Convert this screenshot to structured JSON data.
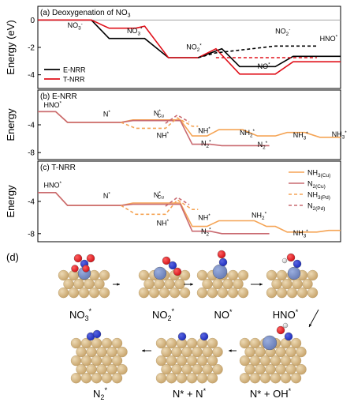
{
  "colors": {
    "black": "#000000",
    "red": "#e0101a",
    "orange": "#f5a455",
    "pink": "#c96a70",
    "blue_label": "#5b9bd5",
    "cu": "#c9a66e",
    "cu_light": "#ecd9b4",
    "n": "#1f2fbf",
    "o": "#d4141a",
    "h": "#eeeeee",
    "site": "#6b7fb8"
  },
  "chart_data": [
    {
      "type": "line",
      "panel": "a",
      "title": "(a) Deoxygenation of NO3",
      "ylabel": "Energy (eV)",
      "ylim": [
        -5,
        1
      ],
      "yticks": [
        0,
        -2,
        -4
      ],
      "step_labels": [
        {
          "text": "NO3",
          "sup": "-",
          "x": 1,
          "y": -0.55
        },
        {
          "text": "NO3",
          "sup": "*",
          "x": 3,
          "y": -0.95
        },
        {
          "text": "NO2",
          "sup": "*",
          "x": 5,
          "y": -2.15
        },
        {
          "text": "NO2",
          "sup": "-",
          "x": 8,
          "y": -1.0,
          "color": "#5b9bd5"
        },
        {
          "text": "NO",
          "sup": "*",
          "x": 7.4,
          "y": -3.55
        },
        {
          "text": "HNO",
          "sup": "*",
          "x": 9.5,
          "y": -1.55
        }
      ],
      "series": [
        {
          "name": "E-NRR",
          "color": "#000000",
          "style": "solid",
          "points": [
            [
              0,
              0
            ],
            [
              1.8,
              0
            ],
            [
              2.4,
              -1.35
            ],
            [
              3.6,
              -1.35
            ],
            [
              4.4,
              -2.75
            ],
            [
              5.4,
              -2.75
            ],
            [
              6.2,
              -2.1
            ],
            [
              6.8,
              -3.4
            ],
            [
              8.0,
              -3.4
            ],
            [
              8.6,
              -2.65
            ],
            [
              10.2,
              -2.65
            ]
          ]
        },
        {
          "name": "T-NRR",
          "color": "#e0101a",
          "style": "solid",
          "points": [
            [
              0,
              0
            ],
            [
              1.8,
              0
            ],
            [
              2.4,
              -0.6
            ],
            [
              3.3,
              -0.6
            ],
            [
              3.6,
              -0.45
            ],
            [
              4.4,
              -2.75
            ],
            [
              5.4,
              -2.75
            ],
            [
              6.0,
              -2.1
            ],
            [
              6.8,
              -3.95
            ],
            [
              8.0,
              -3.95
            ],
            [
              8.6,
              -3.05
            ],
            [
              10.2,
              -3.05
            ]
          ]
        },
        {
          "name": "",
          "color": "#000000",
          "style": "dashed",
          "points": [
            [
              5.4,
              -2.75
            ],
            [
              6.0,
              -2.4
            ],
            [
              8.0,
              -1.9
            ],
            [
              9.4,
              -1.9
            ]
          ]
        },
        {
          "name": "",
          "color": "#e0101a",
          "style": "dashed",
          "points": [
            [
              6.0,
              -2.75
            ],
            [
              9.4,
              -2.75
            ]
          ]
        }
      ],
      "legend": [
        "E-NRR",
        "T-NRR"
      ],
      "legend_placement": "bottom-left"
    },
    {
      "type": "line",
      "panel": "b",
      "title": "(b) E-NRR",
      "ylabel": "Energy",
      "ylim": [
        -9,
        1
      ],
      "yticks": [
        -4,
        -8
      ],
      "step_labels": [
        {
          "text": "HNO",
          "sup": "*",
          "x": 0.2,
          "y": -1.5
        },
        {
          "text": "N",
          "sup": "*",
          "x": 2.2,
          "y": -2.8
        },
        {
          "text": "N",
          "sup": "*",
          "sub": "Cu",
          "x": 3.9,
          "y": -2.7
        },
        {
          "text": "NH",
          "sup": "*",
          "x": 4.0,
          "y": -5.9,
          "color": "#f5a455"
        },
        {
          "text": "NH",
          "sup": "*",
          "x": 5.4,
          "y": -5.2,
          "color": "#f5a455"
        },
        {
          "text": "NH2",
          "sup": "*",
          "x": 6.8,
          "y": -5.5,
          "color": "#f5a455"
        },
        {
          "text": "N2",
          "sup": "*",
          "x": 5.5,
          "y": -7.0,
          "color": "#c96a70"
        },
        {
          "text": "N2",
          "sup": "*",
          "x": 7.4,
          "y": -7.2,
          "color": "#c96a70"
        },
        {
          "text": "NH3",
          "sup": "*",
          "x": 8.6,
          "y": -5.8,
          "color": "#f5a455"
        },
        {
          "text": "NH3",
          "sup": "*",
          "x": 9.9,
          "y": -5.7,
          "color": "#f5a455"
        }
      ],
      "series": [
        {
          "name": "NH3(Cu)",
          "color": "#f5a455",
          "style": "solid",
          "points": [
            [
              0,
              -2.1
            ],
            [
              0.6,
              -2.1
            ],
            [
              1.0,
              -3.65
            ],
            [
              2.8,
              -3.65
            ],
            [
              3.2,
              -3.3
            ],
            [
              4.8,
              -3.3
            ],
            [
              5.2,
              -5.6
            ],
            [
              5.7,
              -5.6
            ],
            [
              6.1,
              -4.7
            ],
            [
              6.9,
              -4.7
            ],
            [
              7.4,
              -5.6
            ],
            [
              8.0,
              -5.6
            ],
            [
              8.4,
              -5.1
            ],
            [
              9.0,
              -5.1
            ],
            [
              9.5,
              -5.8
            ],
            [
              10.2,
              -5.8
            ]
          ]
        },
        {
          "name": "N2(Cu)",
          "color": "#c96a70",
          "style": "solid",
          "points": [
            [
              0,
              -2.1
            ],
            [
              0.6,
              -2.1
            ],
            [
              1.0,
              -3.65
            ],
            [
              2.8,
              -3.65
            ],
            [
              3.2,
              -3.4
            ],
            [
              4.8,
              -3.4
            ],
            [
              5.2,
              -6.8
            ],
            [
              5.8,
              -6.8
            ],
            [
              6.2,
              -7.0
            ],
            [
              7.8,
              -7.0
            ]
          ]
        },
        {
          "name": "NH3(Pd)",
          "color": "#f5a455",
          "style": "dashed",
          "points": [
            [
              2.8,
              -3.65
            ],
            [
              3.3,
              -4.5
            ],
            [
              4.3,
              -4.5
            ],
            [
              4.7,
              -3.0
            ],
            [
              5.2,
              -4.2
            ],
            [
              5.4,
              -4.2
            ]
          ]
        },
        {
          "name": "N2(Pd)",
          "color": "#c96a70",
          "style": "dashed",
          "points": [
            [
              4.3,
              -3.8
            ],
            [
              4.7,
              -2.6
            ],
            [
              5.1,
              -3.6
            ]
          ]
        }
      ]
    },
    {
      "type": "line",
      "panel": "c",
      "title": "(c) T-NRR",
      "ylabel": "Energy",
      "ylim": [
        -9,
        1
      ],
      "yticks": [
        -4,
        -8
      ],
      "step_labels": [
        {
          "text": "HNO",
          "sup": "*",
          "x": 0.2,
          "y": -2.3
        },
        {
          "text": "N",
          "sup": "*",
          "x": 2.2,
          "y": -3.6
        },
        {
          "text": "N",
          "sup": "*",
          "sub": "Cu",
          "x": 3.9,
          "y": -3.5
        },
        {
          "text": "NH",
          "sup": "*",
          "x": 4.0,
          "y": -7.0,
          "color": "#f5a455"
        },
        {
          "text": "NH",
          "sup": "*",
          "x": 5.4,
          "y": -6.3,
          "color": "#f5a455"
        },
        {
          "text": "NH2",
          "sup": "*",
          "x": 7.2,
          "y": -6.0,
          "color": "#f5a455"
        },
        {
          "text": "N2",
          "sup": "*",
          "x": 5.5,
          "y": -8.0,
          "color": "#c96a70"
        },
        {
          "text": "NH3",
          "sup": "*",
          "x": 8.6,
          "y": -8.2,
          "color": "#f5a455"
        }
      ],
      "series": [
        {
          "name": "NH3(Cu)",
          "color": "#f5a455",
          "style": "solid",
          "points": [
            [
              0,
              -2.9
            ],
            [
              0.6,
              -2.9
            ],
            [
              1.0,
              -4.5
            ],
            [
              2.8,
              -4.5
            ],
            [
              3.2,
              -4.2
            ],
            [
              4.8,
              -4.2
            ],
            [
              5.2,
              -7.1
            ],
            [
              5.7,
              -7.1
            ],
            [
              6.1,
              -6.4
            ],
            [
              7.3,
              -6.4
            ],
            [
              7.7,
              -7.1
            ],
            [
              8.0,
              -7.1
            ],
            [
              8.4,
              -7.8
            ],
            [
              9.4,
              -7.8
            ],
            [
              9.8,
              -7.6
            ],
            [
              10.2,
              -7.6
            ]
          ]
        },
        {
          "name": "N2(Cu)",
          "color": "#c96a70",
          "style": "solid",
          "points": [
            [
              0,
              -2.9
            ],
            [
              0.6,
              -2.9
            ],
            [
              1.0,
              -4.5
            ],
            [
              2.8,
              -4.5
            ],
            [
              3.2,
              -4.35
            ],
            [
              4.8,
              -4.35
            ],
            [
              5.2,
              -7.7
            ],
            [
              5.8,
              -7.7
            ],
            [
              6.2,
              -8.0
            ],
            [
              7.8,
              -8.0
            ]
          ]
        },
        {
          "name": "NH3(Pd)",
          "color": "#f5a455",
          "style": "dashed",
          "points": [
            [
              2.8,
              -4.5
            ],
            [
              3.3,
              -5.6
            ],
            [
              4.3,
              -5.6
            ],
            [
              4.7,
              -3.8
            ],
            [
              5.2,
              -5.0
            ],
            [
              5.4,
              -5.0
            ]
          ]
        },
        {
          "name": "N2(Pd)",
          "color": "#c96a70",
          "style": "dashed",
          "points": [
            [
              4.3,
              -4.6
            ],
            [
              4.7,
              -3.5
            ],
            [
              5.1,
              -4.4
            ]
          ]
        }
      ],
      "legend": [
        "NH3(Cu)",
        "N2(Cu)",
        "NH3(Pd)",
        "N2(Pd)"
      ],
      "legend_placement": "top-right"
    }
  ],
  "panel_d": {
    "label": "(d)",
    "steps": [
      {
        "label": "NO3",
        "sup": "*",
        "adsorbate": "no3"
      },
      {
        "label": "NO2",
        "sup": "*",
        "adsorbate": "no2"
      },
      {
        "label": "NO",
        "sup": "*",
        "adsorbate": "no"
      },
      {
        "label": "HNO",
        "sup": "*",
        "adsorbate": "hno"
      },
      {
        "label": "N2",
        "sup": "*",
        "adsorbate": "n2"
      },
      {
        "label": "N* + N",
        "sup": "*",
        "adsorbate": "nn"
      },
      {
        "label": "N* + OH",
        "sup": "*",
        "adsorbate": "noh"
      }
    ]
  }
}
